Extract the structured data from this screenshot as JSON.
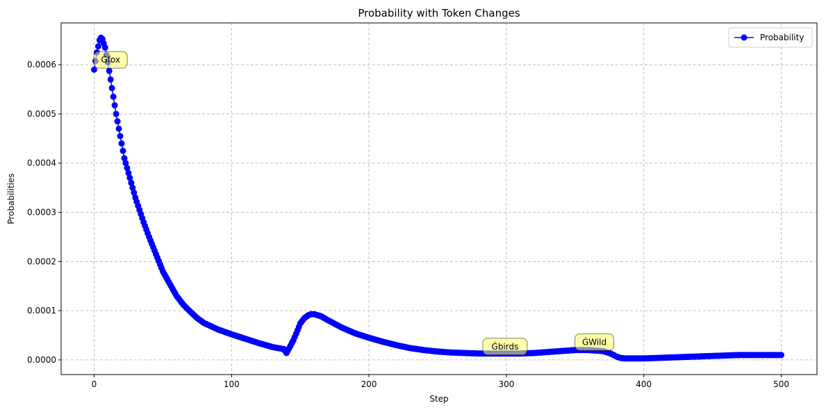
{
  "chart_data": {
    "type": "scatter",
    "title": "Probability with Token Changes",
    "xlabel": "Step",
    "ylabel": "Probabilities",
    "xlim": [
      -24,
      526
    ],
    "ylim": [
      -2.98e-05,
      0.000685
    ],
    "xticks": [
      0,
      100,
      200,
      300,
      400,
      500
    ],
    "xtick_labels": [
      "0",
      "100",
      "200",
      "300",
      "400",
      "500"
    ],
    "yticks": [
      0,
      0.0001,
      0.0002,
      0.0003,
      0.0004,
      0.0005,
      0.0006
    ],
    "ytick_labels": [
      "0.0000",
      "0.0001",
      "0.0002",
      "0.0003",
      "0.0004",
      "0.0005",
      "0.0006"
    ],
    "grid": true,
    "legend": {
      "position": "top-right",
      "entries": [
        "Probability"
      ]
    },
    "series": [
      {
        "name": "Probability",
        "color": "#0000ff",
        "marker": "circle",
        "x": [
          0,
          2,
          4,
          5,
          6,
          8,
          10,
          12,
          14,
          16,
          18,
          20,
          22,
          25,
          28,
          30,
          33,
          36,
          40,
          45,
          50,
          55,
          60,
          65,
          70,
          75,
          80,
          90,
          100,
          110,
          120,
          130,
          138,
          140,
          142,
          145,
          148,
          150,
          153,
          156,
          158,
          160,
          165,
          170,
          180,
          190,
          200,
          210,
          220,
          230,
          240,
          250,
          260,
          270,
          280,
          290,
          300,
          310,
          320,
          330,
          340,
          350,
          360,
          365,
          370,
          375,
          378,
          380,
          383,
          386,
          390,
          395,
          400,
          410,
          420,
          430,
          440,
          450,
          460,
          470,
          480,
          490,
          500
        ],
        "y": [
          0.00059,
          0.000625,
          0.00065,
          0.000655,
          0.000652,
          0.000635,
          0.000605,
          0.00057,
          0.000535,
          0.0005,
          0.00047,
          0.00044,
          0.00041,
          0.00038,
          0.00035,
          0.00033,
          0.000305,
          0.00028,
          0.00025,
          0.000215,
          0.00018,
          0.000155,
          0.00013,
          0.000112,
          9.8e-05,
          8.5e-05,
          7.5e-05,
          6.2e-05,
          5.2e-05,
          4.3e-05,
          3.4e-05,
          2.6e-05,
          2.2e-05,
          1.4e-05,
          2.4e-05,
          4e-05,
          6e-05,
          7.4e-05,
          8.5e-05,
          9.1e-05,
          9.3e-05,
          9.3e-05,
          8.9e-05,
          8.1e-05,
          6.6e-05,
          5.4e-05,
          4.5e-05,
          3.7e-05,
          3e-05,
          2.4e-05,
          2e-05,
          1.7e-05,
          1.5e-05,
          1.4e-05,
          1.3e-05,
          1.3e-05,
          1.3e-05,
          1.3e-05,
          1.4e-05,
          1.6e-05,
          1.8e-05,
          2e-05,
          2e-05,
          1.9e-05,
          1.8e-05,
          1.4e-05,
          1e-05,
          7e-06,
          4e-06,
          3e-06,
          3e-06,
          3e-06,
          3e-06,
          4e-06,
          5e-06,
          6e-06,
          7e-06,
          8e-06,
          9e-06,
          1e-05,
          1e-05,
          1e-05,
          1e-05
        ]
      }
    ],
    "annotations": [
      {
        "text": "Ġfox",
        "x": 12,
        "y": 0.00061,
        "color": "#ffff66"
      },
      {
        "text": "Ġbirds",
        "x": 299,
        "y": 2.7e-05,
        "color": "#ffff66"
      },
      {
        "text": "ĠWild",
        "x": 364,
        "y": 3.6e-05,
        "color": "#ffff66"
      }
    ]
  }
}
